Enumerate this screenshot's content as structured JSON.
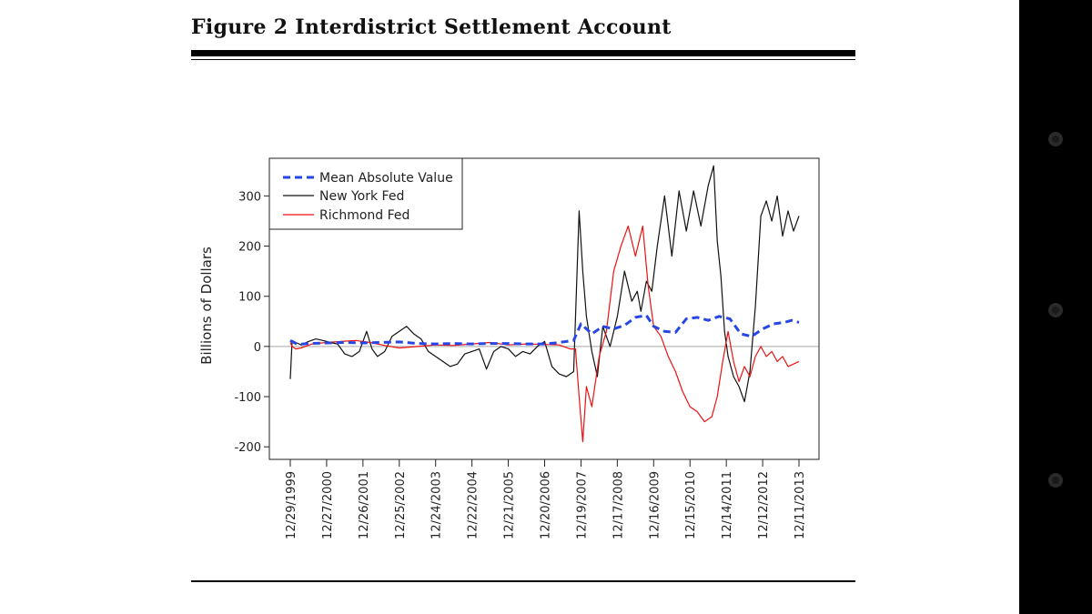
{
  "figure": {
    "title": "Figure 2  Interdistrict Settlement Account"
  },
  "colors": {
    "mean_line": "#2646e6",
    "new_york": "#111111",
    "richmond": "#ee1111",
    "zero_line": "#b8b8b8"
  },
  "chart_data": {
    "type": "line",
    "title": "",
    "xlabel": "",
    "ylabel": "Billions of Dollars",
    "ylim": [
      -225,
      375
    ],
    "xlim": [
      0,
      14.15
    ],
    "yticks": [
      -200,
      -100,
      0,
      100,
      200,
      300
    ],
    "x_tick_positions": [
      0,
      1,
      2,
      3,
      4,
      5,
      6,
      7,
      8,
      9,
      10,
      11,
      12,
      13,
      14
    ],
    "x_tick_labels": [
      "12/29/1999",
      "12/27/2000",
      "12/26/2001",
      "12/25/2002",
      "12/24/2003",
      "12/22/2004",
      "12/21/2005",
      "12/20/2006",
      "12/19/2007",
      "12/17/2008",
      "12/16/2009",
      "12/15/2010",
      "12/14/2011",
      "12/12/2012",
      "12/11/2013"
    ],
    "legend_position": "top-left",
    "series": [
      {
        "name": "Mean Absolute Value",
        "style": "dashed",
        "x": [
          0,
          0.2,
          0.5,
          1,
          1.5,
          2,
          2.5,
          3,
          3.5,
          4,
          4.5,
          5,
          5.5,
          6,
          6.5,
          7,
          7.3,
          7.6,
          7.8,
          8.0,
          8.3,
          8.6,
          8.9,
          9.2,
          9.5,
          9.8,
          10.0,
          10.3,
          10.6,
          10.9,
          11.2,
          11.5,
          11.8,
          12.1,
          12.4,
          12.7,
          13.0,
          13.3,
          13.6,
          13.8,
          14.0
        ],
        "y": [
          12,
          4,
          6,
          7,
          8,
          7,
          8,
          9,
          6,
          5,
          6,
          5,
          6,
          6,
          5,
          5,
          7,
          10,
          12,
          45,
          25,
          40,
          35,
          42,
          58,
          62,
          40,
          30,
          28,
          55,
          58,
          52,
          60,
          55,
          25,
          20,
          35,
          45,
          48,
          52,
          48
        ]
      },
      {
        "name": "New York Fed",
        "style": "solid",
        "x": [
          0,
          0.05,
          0.15,
          0.3,
          0.5,
          0.7,
          0.9,
          1.1,
          1.3,
          1.5,
          1.7,
          1.9,
          2.1,
          2.25,
          2.4,
          2.6,
          2.8,
          3.0,
          3.2,
          3.4,
          3.6,
          3.8,
          4.0,
          4.2,
          4.4,
          4.6,
          4.8,
          5.0,
          5.2,
          5.4,
          5.6,
          5.8,
          6.0,
          6.2,
          6.4,
          6.6,
          6.8,
          7.0,
          7.2,
          7.4,
          7.6,
          7.8,
          7.95,
          8.05,
          8.15,
          8.3,
          8.45,
          8.6,
          8.8,
          9.0,
          9.2,
          9.4,
          9.55,
          9.65,
          9.8,
          9.95,
          10.1,
          10.3,
          10.5,
          10.7,
          10.9,
          11.1,
          11.3,
          11.5,
          11.65,
          11.75,
          11.85,
          11.95,
          12.05,
          12.2,
          12.35,
          12.5,
          12.65,
          12.8,
          12.95,
          13.1,
          13.25,
          13.4,
          13.55,
          13.7,
          13.85,
          14.0
        ],
        "y": [
          -65,
          12,
          8,
          3,
          10,
          15,
          12,
          8,
          5,
          -15,
          -20,
          -10,
          30,
          -5,
          -20,
          -10,
          20,
          30,
          40,
          25,
          15,
          -10,
          -20,
          -30,
          -40,
          -35,
          -15,
          -10,
          -5,
          -45,
          -10,
          0,
          -5,
          -20,
          -10,
          -15,
          0,
          10,
          -40,
          -55,
          -60,
          -50,
          270,
          150,
          60,
          -10,
          -60,
          40,
          0,
          60,
          150,
          90,
          110,
          70,
          130,
          110,
          200,
          300,
          180,
          310,
          230,
          310,
          240,
          320,
          360,
          210,
          140,
          30,
          -20,
          -60,
          -80,
          -110,
          -50,
          80,
          260,
          290,
          250,
          300,
          220,
          270,
          230,
          260
        ]
      },
      {
        "name": "Richmond Fed",
        "style": "solid",
        "x": [
          0,
          0.05,
          0.15,
          0.3,
          0.6,
          1.0,
          1.4,
          1.8,
          2.2,
          2.6,
          3.0,
          3.5,
          4.0,
          4.5,
          5.0,
          5.5,
          6.0,
          6.5,
          7.0,
          7.4,
          7.7,
          7.85,
          7.95,
          8.05,
          8.15,
          8.3,
          8.5,
          8.7,
          8.9,
          9.1,
          9.3,
          9.5,
          9.7,
          9.85,
          10.0,
          10.2,
          10.4,
          10.6,
          10.8,
          11.0,
          11.2,
          11.4,
          11.6,
          11.75,
          11.9,
          12.05,
          12.2,
          12.35,
          12.5,
          12.65,
          12.8,
          12.95,
          13.1,
          13.25,
          13.4,
          13.55,
          13.7,
          13.85,
          14.0
        ],
        "y": [
          8,
          0,
          -5,
          -3,
          5,
          8,
          10,
          12,
          8,
          2,
          -3,
          0,
          3,
          2,
          5,
          8,
          3,
          5,
          4,
          3,
          -5,
          -5,
          -100,
          -190,
          -80,
          -120,
          -20,
          30,
          150,
          200,
          240,
          180,
          240,
          120,
          40,
          20,
          -20,
          -50,
          -90,
          -120,
          -130,
          -150,
          -140,
          -100,
          -30,
          30,
          -30,
          -70,
          -40,
          -60,
          -20,
          0,
          -20,
          -10,
          -30,
          -20,
          -40,
          -35,
          -30
        ]
      }
    ]
  }
}
